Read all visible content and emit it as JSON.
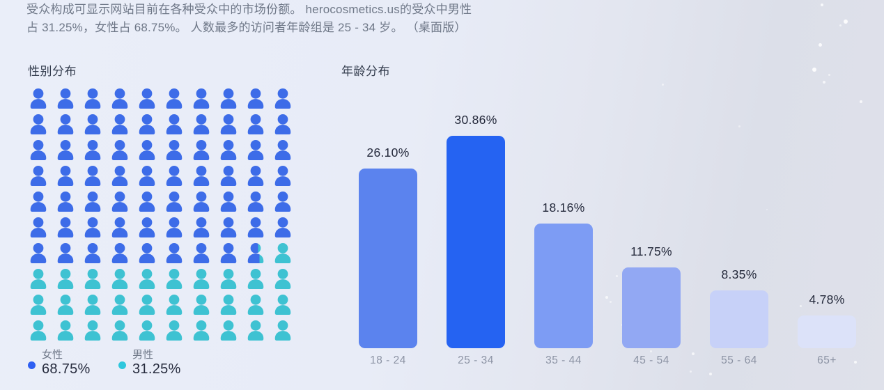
{
  "description": "受众构成可显示网站目前在各种受众中的市场份额。 herocosmetics.us的受众中男性占 31.25%，女性占 68.75%。 人数最多的访问者年龄组是 25 - 34 岁。 （桌面版）",
  "chart_data": [
    {
      "type": "pictogram",
      "title": "性别分布",
      "total_icons": 100,
      "columns": 10,
      "rows": 10,
      "icon": "person-icon",
      "series": [
        {
          "name": "女性",
          "value": 68.75,
          "percent_label": "68.75%",
          "icons": 68.75,
          "color": "#3d6ce8",
          "legend_dot_color": "#2e5ff2"
        },
        {
          "name": "男性",
          "value": 31.25,
          "percent_label": "31.25%",
          "icons": 31.25,
          "color": "#3ec2d2",
          "legend_dot_color": "#2fc7dd"
        }
      ],
      "legend_position": "bottom"
    },
    {
      "type": "bar",
      "title": "年龄分布",
      "categories": [
        "18 - 24",
        "25 - 34",
        "35 - 44",
        "45 - 54",
        "55 - 64",
        "65+"
      ],
      "values": [
        26.1,
        30.86,
        18.16,
        11.75,
        8.35,
        4.78
      ],
      "data_labels": [
        "26.10%",
        "30.86%",
        "18.16%",
        "11.75%",
        "8.35%",
        "4.78%"
      ],
      "bar_colors": [
        "#5b83ee",
        "#2563f2",
        "#7d9cf4",
        "#92a8f3",
        "#c7d1f8",
        "#dce2f9"
      ],
      "xlabel": "",
      "ylabel": "",
      "ylim": [
        0,
        30.86
      ],
      "grid": false,
      "legend_position": "none"
    }
  ]
}
